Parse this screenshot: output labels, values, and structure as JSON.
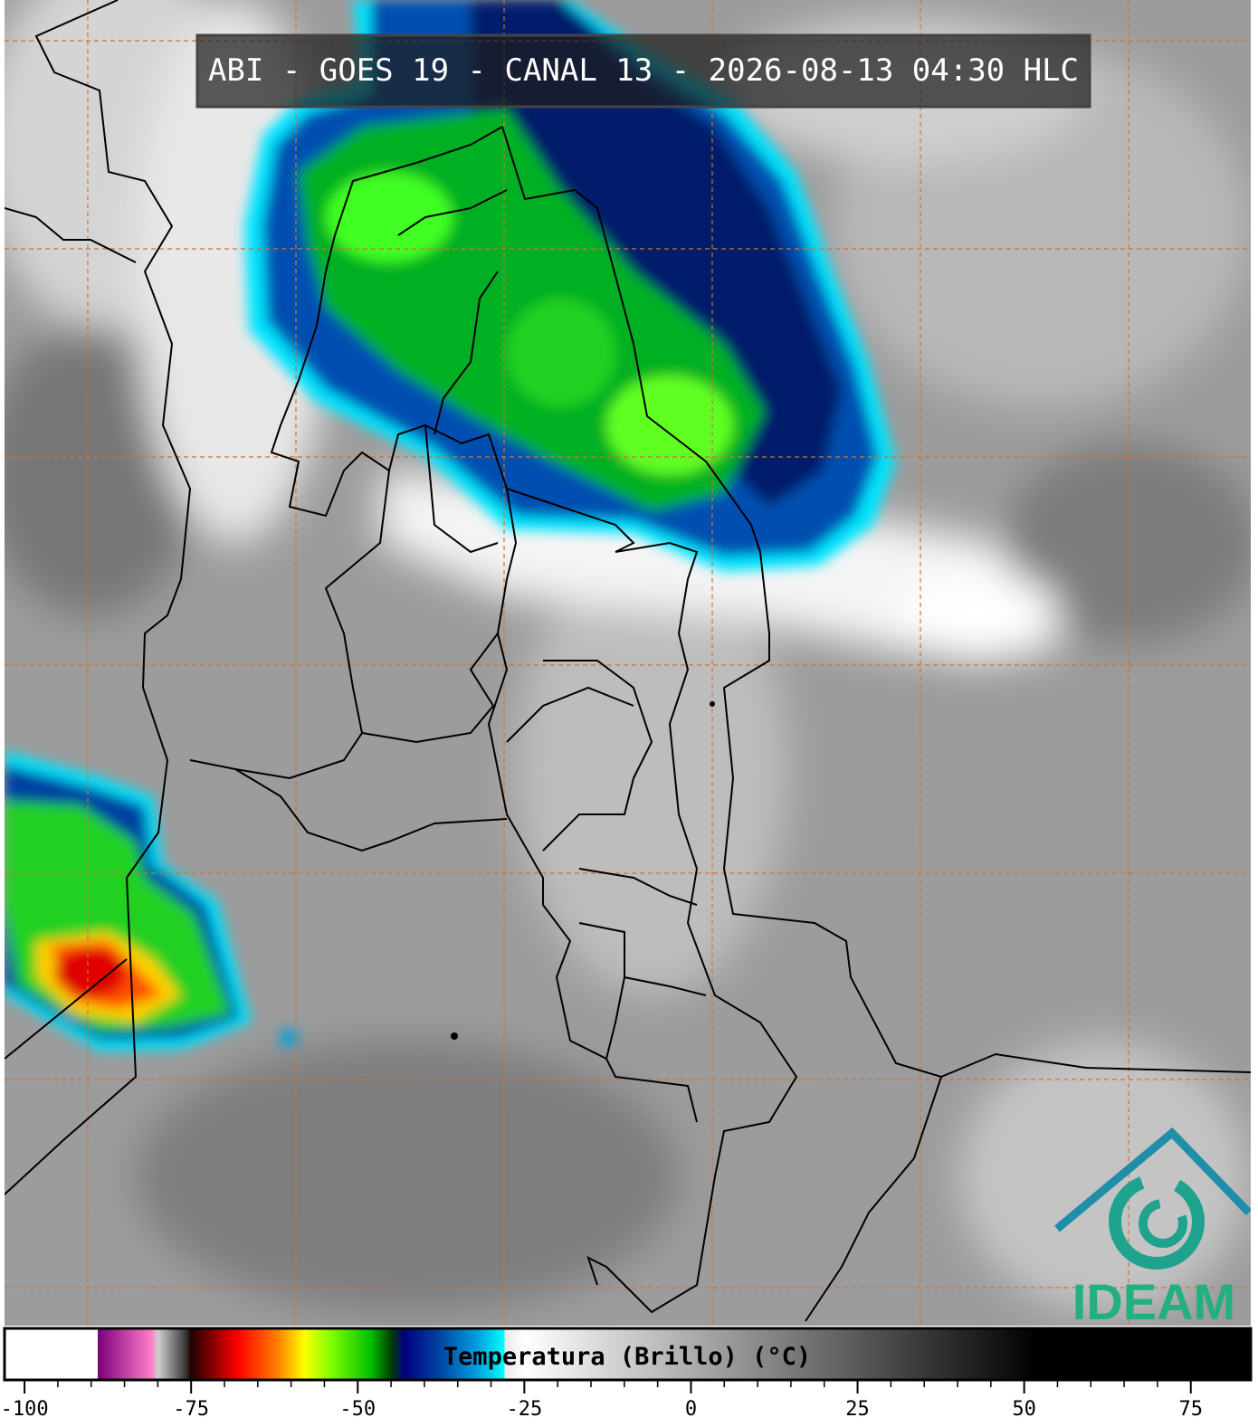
{
  "header": {
    "title": "ABI - GOES 19 - CANAL 13 - 2026-08-13 04:30 HLC"
  },
  "colorbar": {
    "label": "Temperatura (Brillo) (°C)",
    "lim": [
      -103,
      84
    ],
    "ticks": [
      -100,
      -75,
      -50,
      -25,
      0,
      25,
      50,
      75
    ],
    "stops": [
      {
        "value": -103,
        "color": "#ffffff"
      },
      {
        "value": -89,
        "color": "#ffffff"
      },
      {
        "value": -89,
        "color": "#7a007a"
      },
      {
        "value": -81,
        "color": "#ff7cc8"
      },
      {
        "value": -80,
        "color": "#d0d0d0"
      },
      {
        "value": -76,
        "color": "#404040"
      },
      {
        "value": -75,
        "color": "#200000"
      },
      {
        "value": -68,
        "color": "#ff0000"
      },
      {
        "value": -62,
        "color": "#ff8000"
      },
      {
        "value": -58,
        "color": "#ffff00"
      },
      {
        "value": -54,
        "color": "#80ff00"
      },
      {
        "value": -48,
        "color": "#00c000"
      },
      {
        "value": -45,
        "color": "#004000"
      },
      {
        "value": -43,
        "color": "#000080"
      },
      {
        "value": -38,
        "color": "#0040a0"
      },
      {
        "value": -32,
        "color": "#00a0e0"
      },
      {
        "value": -28,
        "color": "#00ffff"
      },
      {
        "value": -28,
        "color": "#e8e8e8"
      },
      {
        "value": -25,
        "color": "#ffffff"
      },
      {
        "value": 52,
        "color": "#000000"
      },
      {
        "value": 84,
        "color": "#000000"
      }
    ]
  },
  "logo": {
    "text": "IDEAM"
  }
}
